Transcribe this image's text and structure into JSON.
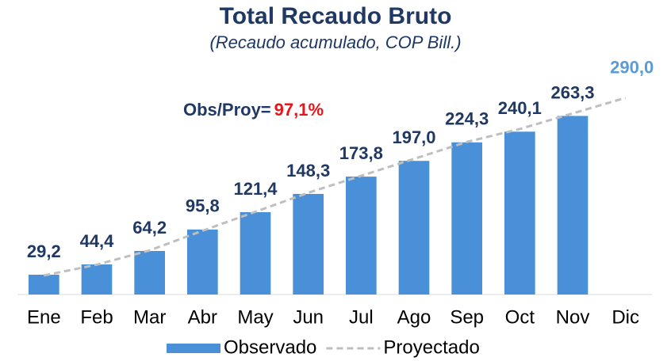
{
  "chart_data": {
    "type": "bar",
    "title": "Total Recaudo Bruto",
    "subtitle": "(Recaudo acumulado, COP Bill.)",
    "annotation": {
      "text": "Obs/Proy=",
      "value": "97,1%"
    },
    "categories": [
      "Ene",
      "Feb",
      "Mar",
      "Abr",
      "May",
      "Jun",
      "Jul",
      "Ago",
      "Sep",
      "Oct",
      "Nov",
      "Dic"
    ],
    "series": [
      {
        "name": "Observado",
        "type": "bar",
        "color": "#4a90d9",
        "values": [
          29.2,
          44.4,
          64.2,
          95.8,
          121.4,
          148.3,
          173.8,
          197.0,
          224.3,
          240.1,
          263.3,
          null
        ],
        "value_labels": [
          "29,2",
          "44,4",
          "64,2",
          "95,8",
          "121,4",
          "148,3",
          "173,8",
          "197,0",
          "224,3",
          "240,1",
          "263,3",
          null
        ]
      },
      {
        "name": "Proyectado",
        "type": "line",
        "color": "#bfbfbf",
        "values": [
          28,
          44,
          65,
          94,
          122,
          150,
          175,
          200,
          225,
          244,
          267,
          290
        ],
        "value_labels": [
          null,
          null,
          null,
          null,
          null,
          null,
          null,
          null,
          null,
          null,
          null,
          "290,0"
        ]
      }
    ],
    "ylim": [
      0,
      300
    ]
  }
}
